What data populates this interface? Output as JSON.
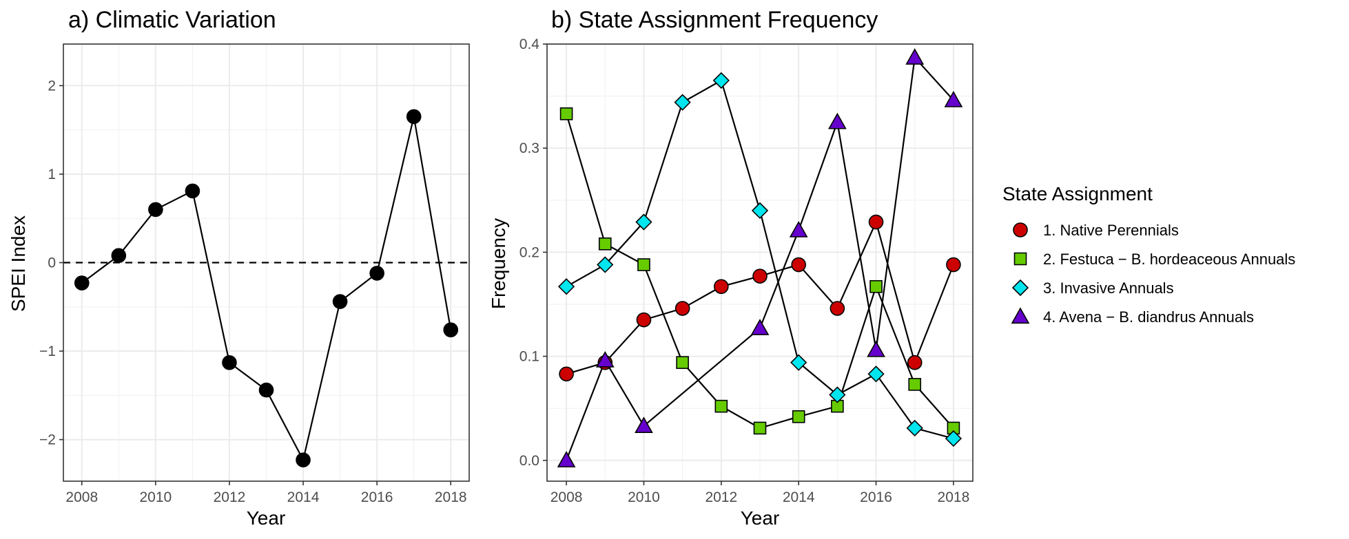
{
  "chart_data": [
    {
      "type": "line",
      "title": "a) Climatic Variation",
      "xlabel": "Year",
      "ylabel": "SPEI Index",
      "x": [
        2008,
        2009,
        2010,
        2011,
        2012,
        2013,
        2014,
        2015,
        2016,
        2017,
        2018
      ],
      "series": [
        {
          "values": [
            -0.23,
            0.08,
            0.6,
            0.81,
            -1.13,
            -1.44,
            -2.23,
            -0.44,
            -0.12,
            1.65,
            -0.76
          ],
          "marker": "circle",
          "color": "#000000"
        }
      ],
      "reference_line": {
        "y": 0,
        "style": "dashed"
      },
      "xlim": [
        2007.5,
        2018.5
      ],
      "ylim": [
        -2.47,
        2.47
      ],
      "xticks": [
        2008,
        2010,
        2012,
        2014,
        2016,
        2018
      ],
      "xtick_labels": [
        "2008",
        "2010",
        "2012",
        "2014",
        "2016",
        "2018"
      ],
      "yticks": [
        -2,
        -1,
        0,
        1,
        2
      ],
      "ytick_labels": [
        "−2",
        "−1",
        "0",
        "1",
        "2"
      ],
      "grid": true
    },
    {
      "type": "line",
      "title": "b) State Assignment Frequency",
      "xlabel": "Year",
      "ylabel": "Frequency",
      "x": [
        2008,
        2009,
        2010,
        2011,
        2012,
        2013,
        2014,
        2015,
        2016,
        2017,
        2018
      ],
      "series": [
        {
          "name": "1. Native Perennials",
          "marker": "circle",
          "color": "#cc0000",
          "values": [
            0.083,
            0.094,
            0.135,
            0.146,
            0.167,
            0.177,
            0.188,
            0.146,
            0.229,
            0.094,
            0.188
          ]
        },
        {
          "name": "2. Festuca − B. hordeaceous Annuals",
          "marker": "square",
          "color": "#66cc00",
          "values": [
            0.333,
            0.208,
            0.188,
            0.094,
            0.052,
            0.031,
            0.042,
            0.052,
            0.167,
            0.073,
            0.031
          ]
        },
        {
          "name": "3. Invasive Annuals",
          "marker": "diamond",
          "color": "#00e5ee",
          "values": [
            0.167,
            0.188,
            0.229,
            0.344,
            0.365,
            0.24,
            0.094,
            0.063,
            0.083,
            0.031,
            0.021
          ]
        },
        {
          "name": "4. Avena − B. diandrus Annuals",
          "marker": "triangle",
          "color": "#6600cc",
          "x": [
            2008,
            2009,
            2010,
            2013,
            2014,
            2015,
            2016,
            2017,
            2018
          ],
          "values": [
            0.0,
            0.096,
            0.033,
            0.127,
            0.221,
            0.325,
            0.106,
            0.387,
            0.346
          ]
        }
      ],
      "xlim": [
        2007.5,
        2018.5
      ],
      "ylim": [
        -0.02,
        0.4
      ],
      "xticks": [
        2008,
        2010,
        2012,
        2014,
        2016,
        2018
      ],
      "xtick_labels": [
        "2008",
        "2010",
        "2012",
        "2014",
        "2016",
        "2018"
      ],
      "yticks": [
        0,
        0.1,
        0.2,
        0.3,
        0.4
      ],
      "ytick_labels": [
        "0.0",
        "0.1",
        "0.2",
        "0.3",
        "0.4"
      ],
      "grid": true,
      "legend": {
        "title": "State Assignment",
        "placement": "right"
      }
    }
  ]
}
